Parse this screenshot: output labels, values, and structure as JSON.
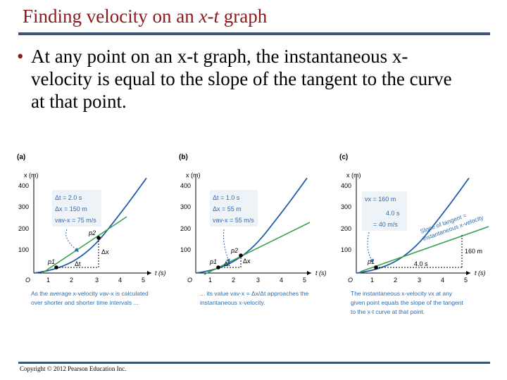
{
  "slide": {
    "title_prefix": "Finding velocity on an ",
    "title_var": "x-t",
    "title_suffix": " graph",
    "bullet": "At any point on an x-t graph, the instantaneous x-velocity is equal to the slope of the tangent to the curve at that point.",
    "copyright": "Copyright © 2012 Pearson Education Inc."
  },
  "colors": {
    "title": "#8b1a1a",
    "rule": "#3b5576",
    "curve": "#1f5aa8",
    "tangent": "#3aa34a",
    "label_blue": "#2b6cb0"
  },
  "axes": {
    "y_label": "x (m)",
    "x_label": "t (s)",
    "origin": "O",
    "y_ticks": [
      "400",
      "300",
      "200",
      "100"
    ],
    "x_ticks": [
      "1",
      "2",
      "3",
      "4",
      "5"
    ]
  },
  "panels": [
    {
      "letter": "(a)",
      "p1": "p1",
      "p2": "p2",
      "delta_t_mark": "Δt",
      "delta_x_mark": "Δx",
      "box": [
        "Δt = 2.0 s",
        "Δx = 150 m",
        "vav-x = 75 m/s"
      ],
      "caption": [
        "As the average x-velocity vav-x is calculated",
        "over shorter and shorter time intervals ..."
      ]
    },
    {
      "letter": "(b)",
      "p1": "p1",
      "p2": "p2",
      "delta_t_mark": "Δt",
      "delta_x_mark": "Δx",
      "box": [
        "Δt = 1.0 s",
        "Δx = 55 m",
        "vav-x = 55 m/s"
      ],
      "caption": [
        "... its value vav-x = Δx/Δt approaches the",
        "instantaneous x-velocity."
      ]
    },
    {
      "letter": "(c)",
      "p1": "p1",
      "box": [
        "vx = 160 m",
        "4.0 s",
        "= 40 m/s"
      ],
      "tangent_label": [
        "Slope of tangent =",
        "instantaneous x-velocity"
      ],
      "rise": "160 m",
      "run": "4.0 s",
      "caption": [
        "The instantaneous x-velocity vx at any",
        "given point equals the slope of the tangent",
        "to the x-t curve at that point."
      ]
    }
  ]
}
